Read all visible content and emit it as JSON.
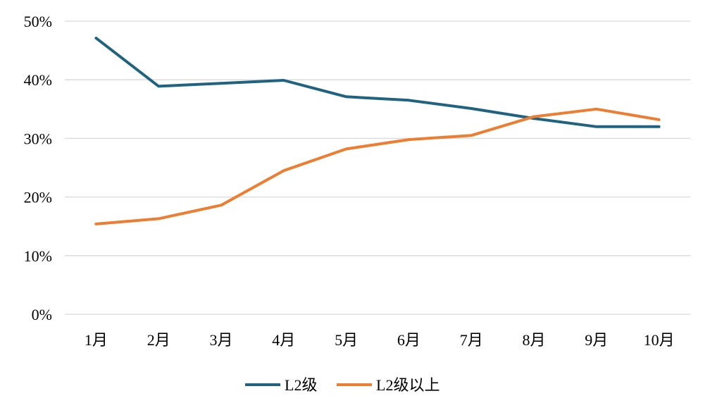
{
  "chart_data": {
    "type": "line",
    "title": "",
    "xlabel": "",
    "ylabel": "",
    "categories": [
      "1月",
      "2月",
      "3月",
      "4月",
      "5月",
      "6月",
      "7月",
      "8月",
      "9月",
      "10月"
    ],
    "ylim": [
      0,
      50
    ],
    "yticks": [
      "0%",
      "10%",
      "20%",
      "30%",
      "40%",
      "50%"
    ],
    "ytick_values": [
      0,
      10,
      20,
      30,
      40,
      50
    ],
    "grid": true,
    "legend_position": "bottom",
    "series": [
      {
        "name": "L2级",
        "color": "#1f6381",
        "values": [
          47.1,
          38.9,
          39.4,
          39.9,
          37.1,
          36.5,
          35.1,
          33.4,
          32.0,
          32.0
        ]
      },
      {
        "name": "L2级以上",
        "color": "#ed7d31",
        "values": [
          15.4,
          16.3,
          18.6,
          24.5,
          28.2,
          29.8,
          30.5,
          33.7,
          35.0,
          33.2
        ]
      }
    ]
  }
}
